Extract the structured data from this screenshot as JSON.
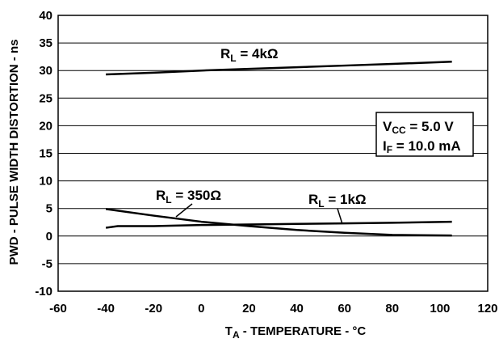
{
  "chart_data": {
    "type": "line",
    "xlabel": {
      "main": "T",
      "sub": "A",
      "rest": " - TEMPERATURE - °C"
    },
    "ylabel": "PWD - PULSE WIDTH DISTORTION - ns",
    "xlim": [
      -60,
      120
    ],
    "ylim": [
      -10,
      40
    ],
    "x_ticks": [
      -60,
      -40,
      -20,
      0,
      20,
      40,
      60,
      80,
      100,
      120
    ],
    "y_ticks": [
      -10,
      -5,
      0,
      5,
      10,
      15,
      20,
      25,
      30,
      35,
      40
    ],
    "grid": "horizontal",
    "series": [
      {
        "name": "R_L = 4kΩ",
        "x": [
          -40,
          -20,
          0,
          20,
          40,
          60,
          80,
          105
        ],
        "y": [
          29.3,
          29.6,
          30.0,
          30.3,
          30.6,
          30.9,
          31.2,
          31.6
        ]
      },
      {
        "name": "R_L = 1kΩ",
        "x": [
          -40,
          -35,
          -20,
          0,
          20,
          40,
          60,
          80,
          105
        ],
        "y": [
          1.5,
          1.8,
          1.8,
          2.0,
          2.1,
          2.2,
          2.3,
          2.4,
          2.6
        ]
      },
      {
        "name": "R_L = 350Ω",
        "x": [
          -40,
          -20,
          0,
          20,
          40,
          60,
          80,
          105
        ],
        "y": [
          4.9,
          3.7,
          2.6,
          1.8,
          1.1,
          0.6,
          0.2,
          0.1
        ]
      }
    ],
    "labels": {
      "r4k": {
        "main": "R",
        "sub": "L",
        "rest": " = 4kΩ"
      },
      "r1k": {
        "main": "R",
        "sub": "L",
        "rest": " = 1kΩ"
      },
      "r350": {
        "main": "R",
        "sub": "L",
        "rest": " = 350Ω"
      }
    },
    "conditions": {
      "vcc": {
        "main": "V",
        "sub": "CC",
        "rest": " = 5.0 V"
      },
      "if": {
        "main": "I",
        "sub": "F",
        "rest": " = 10.0 mA"
      }
    }
  }
}
